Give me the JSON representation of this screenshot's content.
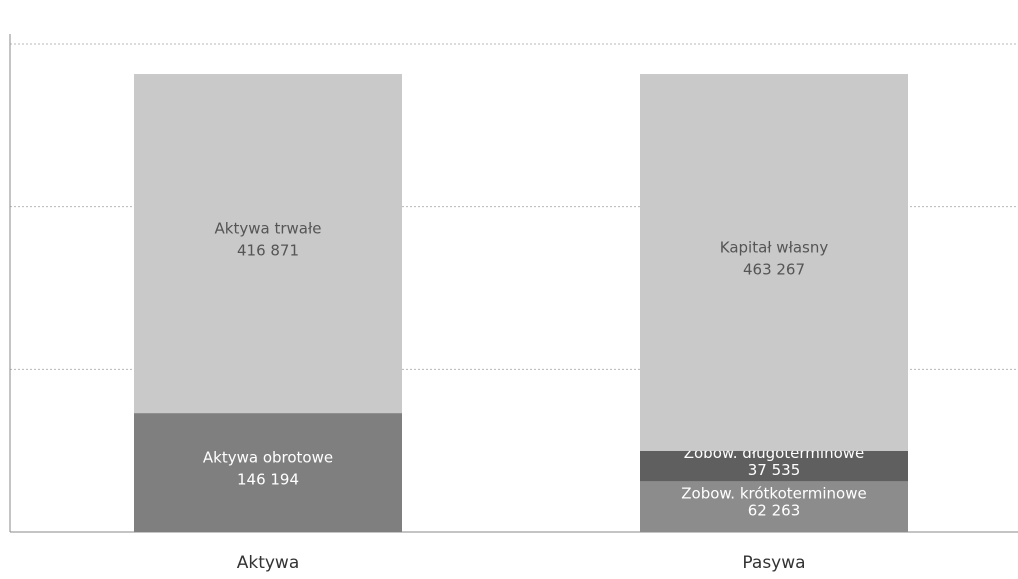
{
  "chart_data": {
    "type": "bar",
    "stacked": true,
    "categories": [
      "Aktywa",
      "Pasywa"
    ],
    "stacks": [
      {
        "category": "Aktywa",
        "segments": [
          {
            "name": "Aktywa obrotowe",
            "value": 146194,
            "value_label": "146 194",
            "color": "#7f7f7f",
            "text_color": "#ffffff"
          },
          {
            "name": "Aktywa trwałe",
            "value": 416871,
            "value_label": "416 871",
            "color": "#c9c9c9",
            "text_color": "#555555"
          }
        ]
      },
      {
        "category": "Pasywa",
        "segments": [
          {
            "name": "Zobow. krótkoterminowe",
            "value": 62263,
            "value_label": "62 263",
            "color": "#8c8c8c",
            "text_color": "#ffffff"
          },
          {
            "name": "Zobow. długoterminowe",
            "value": 37535,
            "value_label": "37 535",
            "color": "#5f5f5f",
            "text_color": "#ffffff"
          },
          {
            "name": "Kapitał własny",
            "value": 463267,
            "value_label": "463 267",
            "color": "#c9c9c9",
            "text_color": "#555555"
          }
        ]
      }
    ],
    "ylim": [
      0,
      600000
    ],
    "gridlines": [
      200000,
      400000,
      600000
    ],
    "grid": true,
    "title": "",
    "xlabel": "",
    "ylabel": ""
  }
}
